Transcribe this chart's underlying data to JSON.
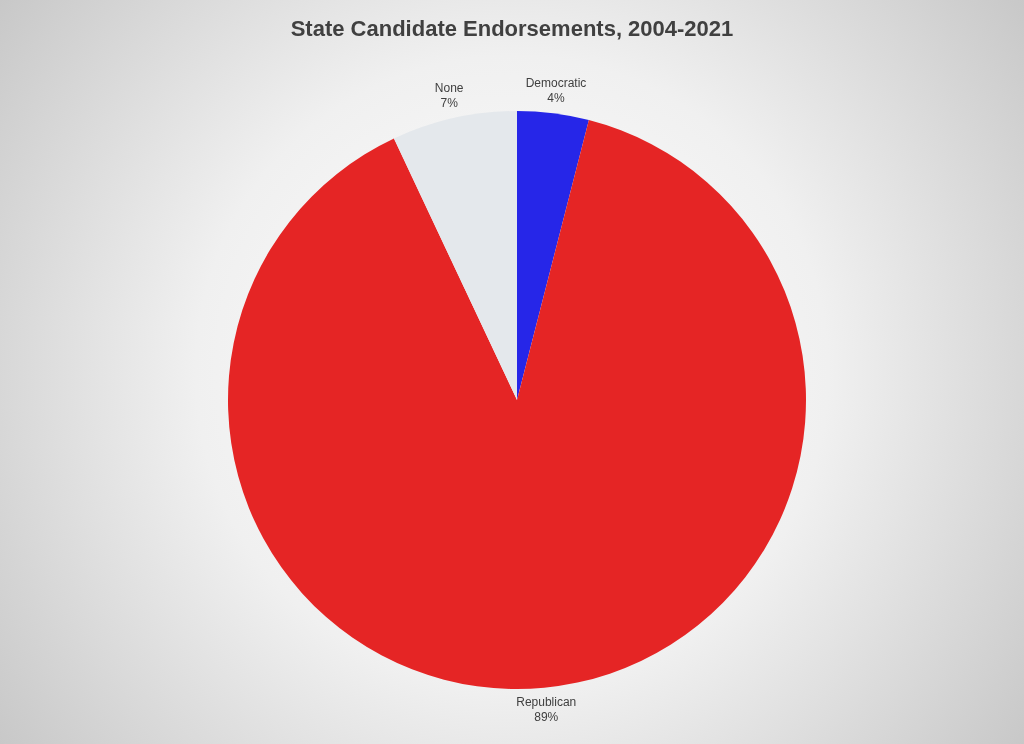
{
  "chart_data": {
    "type": "pie",
    "title": "State Candidate Endorsements, 2004-2021",
    "categories": [
      "Democratic",
      "Republican",
      "None"
    ],
    "values": [
      4,
      89,
      7
    ],
    "value_labels": [
      "4%",
      "89%",
      "7%"
    ],
    "colors": [
      "#2626e8",
      "#e52525",
      "#e4e8ec"
    ],
    "legend": false
  }
}
